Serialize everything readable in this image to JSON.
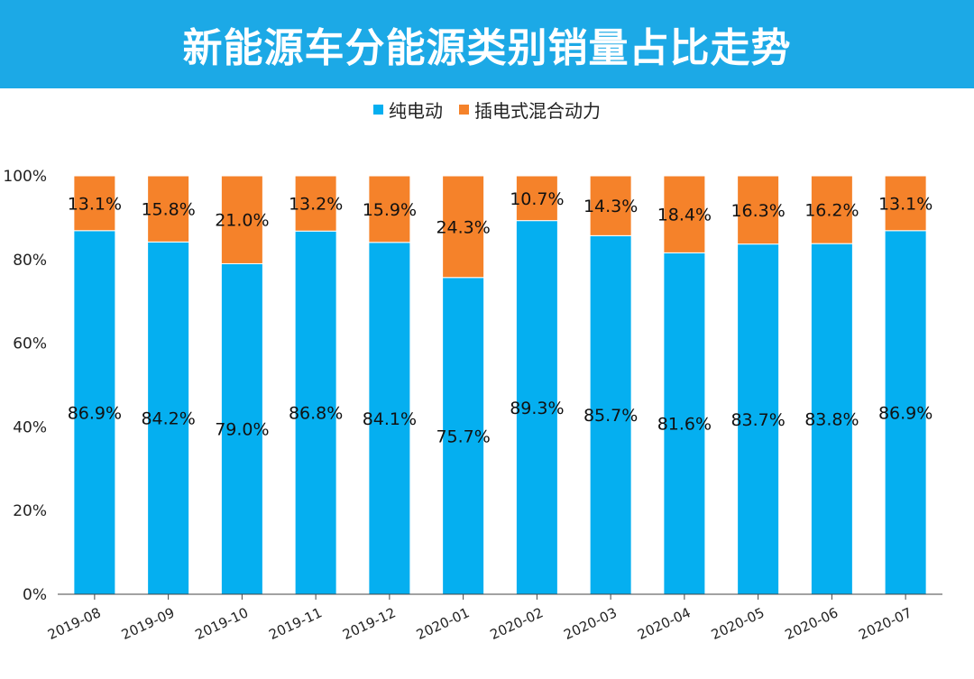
{
  "chart_data": {
    "type": "bar",
    "stacked": true,
    "title": "新能源车分能源类别销量占比走势",
    "categories": [
      "2019-08",
      "2019-09",
      "2019-10",
      "2019-11",
      "2019-12",
      "2020-01",
      "2020-02",
      "2020-03",
      "2020-04",
      "2020-05",
      "2020-06",
      "2020-07"
    ],
    "series": [
      {
        "name": "纯电动",
        "color": "#05aff0",
        "values": [
          86.9,
          84.2,
          79.0,
          86.8,
          84.1,
          75.7,
          89.3,
          85.7,
          81.6,
          83.7,
          83.8,
          86.9
        ],
        "labels": [
          "86.9%",
          "84.2%",
          "79.0%",
          "86.8%",
          "84.1%",
          "75.7%",
          "89.3%",
          "85.7%",
          "81.6%",
          "83.7%",
          "83.8%",
          "86.9%"
        ]
      },
      {
        "name": "插电式混合动力",
        "color": "#f5822a",
        "values": [
          13.1,
          15.8,
          21.0,
          13.2,
          15.9,
          24.3,
          10.7,
          14.3,
          18.4,
          16.3,
          16.2,
          13.1
        ],
        "labels": [
          "13.1%",
          "15.8%",
          "21.0%",
          "13.2%",
          "15.9%",
          "24.3%",
          "10.7%",
          "14.3%",
          "18.4%",
          "16.3%",
          "16.2%",
          "13.1%"
        ]
      }
    ],
    "ylim": [
      0,
      100
    ],
    "yticks": [
      0,
      20,
      40,
      60,
      80,
      100
    ],
    "ytick_labels": [
      "0%",
      "20%",
      "40%",
      "60%",
      "80%",
      "100%"
    ],
    "legend": "top-center",
    "grid": false
  },
  "header": {
    "bg_color": "#1ca9e6"
  }
}
